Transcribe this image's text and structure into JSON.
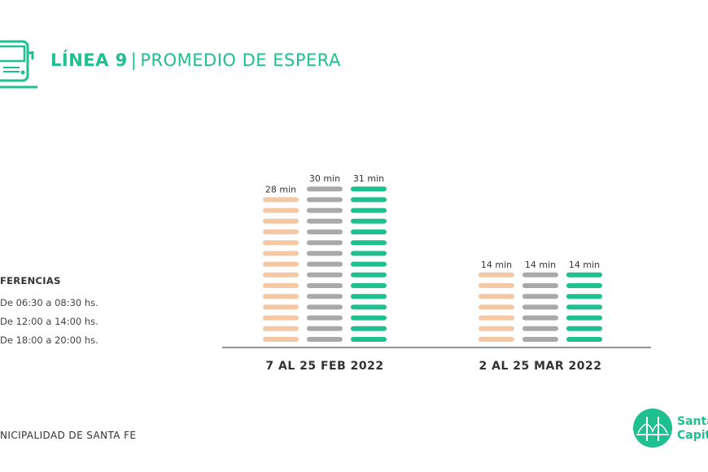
{
  "header": {
    "title_bold": "LÍNEA 9",
    "separator": "|",
    "title_rest": "PROMEDIO DE ESPERA",
    "icon": "bus-icon"
  },
  "legend": {
    "title": "FERENCIAS",
    "items": [
      "De 06:30 a 08:30 hs.",
      "De 12:00 a 14:00 hs.",
      "De 18:00 a 20:00 hs."
    ]
  },
  "footer": {
    "text": "NICIPALIDAD DE SANTA FE"
  },
  "logo": {
    "line1": "Santa",
    "line2": "Capita"
  },
  "colors": {
    "accent": "#1fbf8f",
    "orange": "#f4c8a4",
    "gray": "#a9a9a9",
    "green": "#1fbf8f"
  },
  "chart_data": {
    "type": "bar",
    "categories": [
      "7 AL 25 FEB 2022",
      "2 AL 25 MAR 2022"
    ],
    "series": [
      {
        "name": "De 06:30 a 08:30 hs.",
        "values": [
          28,
          14
        ],
        "labels": [
          "28 min",
          "14 min"
        ]
      },
      {
        "name": "De 12:00 a 14:00 hs.",
        "values": [
          30,
          14
        ],
        "labels": [
          "30 min",
          "14 min"
        ]
      },
      {
        "name": "De 18:00 a 20:00 hs.",
        "values": [
          31,
          14
        ],
        "labels": [
          "31 min",
          "14 min"
        ]
      }
    ],
    "unit": "min",
    "grid": false,
    "legend_position": "left"
  }
}
